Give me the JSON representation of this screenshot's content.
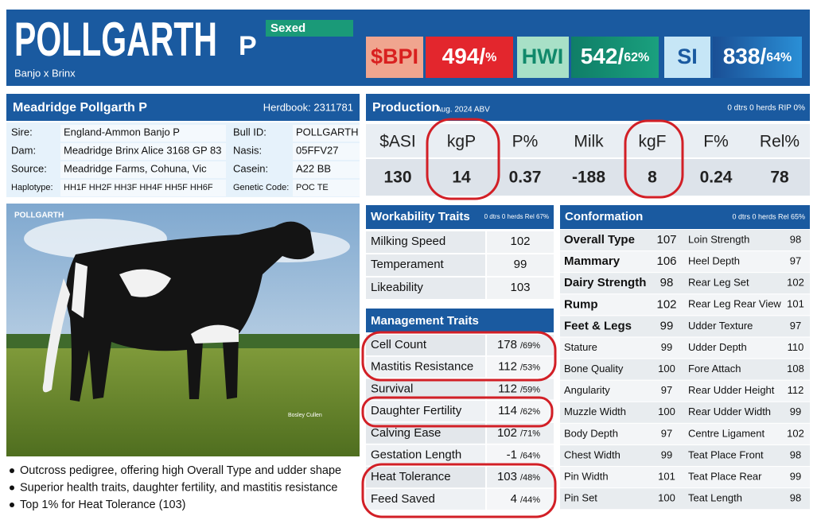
{
  "header": {
    "name": "POLLGARTH",
    "suffix": "P",
    "badge": "Sexed",
    "pedigree": "Banjo x Brinx",
    "indices": [
      {
        "label": "$BPI",
        "main": "494/",
        "rel": "%"
      },
      {
        "label": "HWI",
        "main": "542/",
        "rel": "62%"
      },
      {
        "label": "SI",
        "main": "838/",
        "rel": "64%"
      }
    ]
  },
  "info": {
    "title": "Meadridge Pollgarth P",
    "herdbook": "Herdbook: 2311781",
    "rows": [
      [
        "Sire:",
        "England-Ammon Banjo P",
        "Bull ID:",
        "POLLGARTH"
      ],
      [
        "Dam:",
        "Meadridge Brinx Alice 3168 GP 83",
        "Nasis:",
        "05FFV27"
      ],
      [
        "Source:",
        "Meadridge Farms, Cohuna, Vic",
        "Casein:",
        "A22 BB"
      ],
      [
        "Haplotype:",
        "HH1F HH2F HH3F HH4F HH5F HH6F",
        "Genetic Code:",
        "POC TE"
      ]
    ]
  },
  "production": {
    "title": "Production",
    "date": "Aug. 2024 ABV",
    "note": "0 dtrs 0 herds RIP 0%",
    "headers": [
      "$ASI",
      "kgP",
      "P%",
      "Milk",
      "kgF",
      "F%",
      "Rel%"
    ],
    "values": [
      130,
      14,
      0.37,
      -188,
      8,
      0.24,
      78
    ]
  },
  "photo": {
    "label": "POLLGARTH",
    "credit": "Bosley Cullen"
  },
  "workability": {
    "title": "Workability Traits",
    "note": "0 dtrs 0 herds Rel 67%",
    "rows": [
      [
        "Milking Speed",
        102
      ],
      [
        "Temperament",
        99
      ],
      [
        "Likeability",
        103
      ]
    ]
  },
  "management": {
    "title": "Management Traits",
    "rows": [
      [
        "Cell Count",
        178,
        "/69%"
      ],
      [
        "Mastitis Resistance",
        112,
        "/53%"
      ],
      [
        "Survival",
        112,
        "/59%"
      ],
      [
        "Daughter Fertility",
        114,
        "/62%"
      ],
      [
        "Calving Ease",
        102,
        "/71%"
      ],
      [
        "Gestation Length",
        -1,
        "/64%"
      ],
      [
        "Heat Tolerance",
        103,
        "/48%"
      ],
      [
        "Feed Saved",
        4,
        "/44%"
      ]
    ]
  },
  "conformation": {
    "title": "Conformation",
    "note": "0 dtrs 0 herds Rel 65%",
    "rows": [
      [
        "Overall Type",
        107,
        "Loin Strength",
        98
      ],
      [
        "Mammary",
        106,
        "Heel Depth",
        97
      ],
      [
        "Dairy Strength",
        98,
        "Rear Leg Set",
        102
      ],
      [
        "Rump",
        102,
        "Rear Leg Rear View",
        101
      ],
      [
        "Feet & Legs",
        99,
        "Udder Texture",
        97
      ],
      [
        "Stature",
        99,
        "Udder Depth",
        110
      ],
      [
        "Bone Quality",
        100,
        "Fore Attach",
        108
      ],
      [
        "Angularity",
        97,
        "Rear Udder Height",
        112
      ],
      [
        "Muzzle Width",
        100,
        "Rear Udder Width",
        99
      ],
      [
        "Body Depth",
        97,
        "Centre Ligament",
        102
      ],
      [
        "Chest Width",
        99,
        "Teat Place Front",
        98
      ],
      [
        "Pin Width",
        101,
        "Teat Place Rear",
        99
      ],
      [
        "Pin Set",
        100,
        "Teat Length",
        98
      ]
    ]
  },
  "bullets": [
    "Outcross pedigree, offering high Overall Type and udder shape",
    "Superior health traits, daughter fertility, and mastitis resistance",
    "Top 1% for Heat Tolerance (103)"
  ]
}
